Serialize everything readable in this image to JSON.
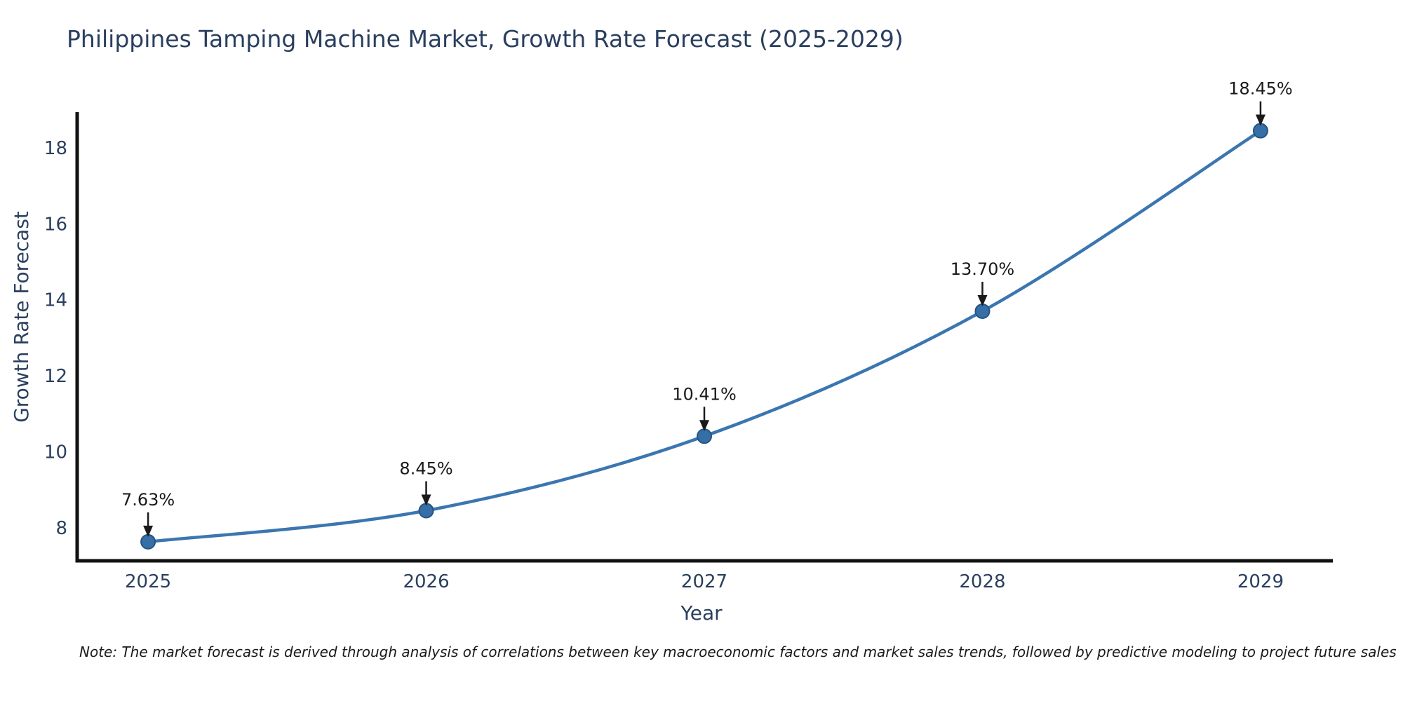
{
  "chart_data": {
    "type": "line",
    "title": "Philippines Tamping Machine Market, Growth Rate Forecast (2025-2029)",
    "xlabel": "Year",
    "ylabel": "Growth Rate Forecast",
    "x": [
      2025,
      2026,
      2027,
      2028,
      2029
    ],
    "values": [
      7.63,
      8.45,
      10.41,
      13.7,
      18.45
    ],
    "point_labels": [
      "7.63%",
      "8.45%",
      "10.41%",
      "13.70%",
      "18.45%"
    ],
    "xtick_labels": [
      "2025",
      "2026",
      "2027",
      "2028",
      "2029"
    ],
    "yticks": [
      8,
      10,
      12,
      14,
      16,
      18
    ],
    "xlim": [
      2024.745,
      2029.26
    ],
    "ylim": [
      7.13,
      18.94
    ],
    "grid": false,
    "legend": "none",
    "line_style": "smooth-spline with circular markers and black annotation arrows",
    "note": "Note: The market forecast is derived through analysis of correlations between key macroeconomic factors and market sales trends, followed by predictive modeling to project future sales",
    "colors": {
      "line": "#3b76b0",
      "marker": "#366fa8",
      "marker_edge": "#24557f",
      "axis": "#111111",
      "text": "#2a3f5f",
      "annotation": "#1a1a1a"
    }
  }
}
